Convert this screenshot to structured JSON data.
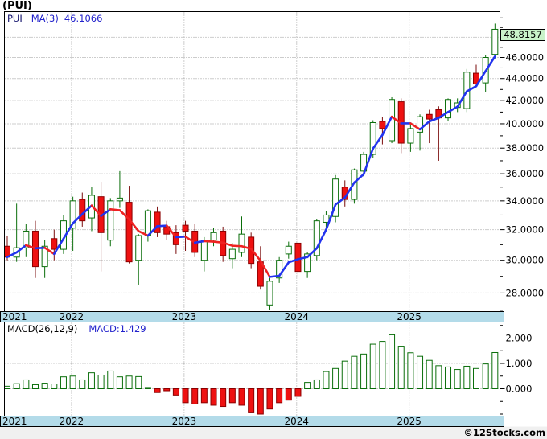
{
  "title": "(PUI)",
  "legend": {
    "symbol": "PUI",
    "ma_label": "MA(3)",
    "ma_value": "46.1066"
  },
  "macd_legend": {
    "label": "MACD(26,12,9)",
    "value": "MACD:1.429"
  },
  "last_price_label": "48.8157",
  "copyright": "©12Stocks.com",
  "price_axis_labels": [
    {
      "text": "46.0000",
      "value": 46
    },
    {
      "text": "44.0000",
      "value": 44
    },
    {
      "text": "42.0000",
      "value": 42
    },
    {
      "text": "40.0000",
      "value": 40
    },
    {
      "text": "38.0000",
      "value": 38
    },
    {
      "text": "36.0000",
      "value": 36
    },
    {
      "text": "34.0000",
      "value": 34
    },
    {
      "text": "32.0000",
      "value": 32
    },
    {
      "text": "30.0000",
      "value": 30
    },
    {
      "text": "28.0000",
      "value": 28
    }
  ],
  "macd_axis_labels": [
    {
      "text": "2.000",
      "value": 2
    },
    {
      "text": "1.000",
      "value": 1
    },
    {
      "text": "0.000",
      "value": 0
    }
  ],
  "x_axis_years": [
    {
      "label": "2021"
    },
    {
      "label": "2022"
    },
    {
      "label": "2023"
    },
    {
      "label": "2024"
    },
    {
      "label": "2025"
    }
  ],
  "colors": {
    "background": "#ffffff",
    "footer_background": "#f0f0f0",
    "axis_strip": "#b3dbe9",
    "grid": "#9a9a9a",
    "border": "#000000",
    "up": "#0a6e0a",
    "down_fill": "#ee1111",
    "down_edge": "#8b0000",
    "ma_up": "#2233ee",
    "ma_down": "#ee2222",
    "last_price_bg": "#c9f3c9",
    "legend_symbol": "#10106a",
    "legend_value": "#2222cc",
    "text": "#000000"
  },
  "chart_data": {
    "type": "candlestick",
    "title": "(PUI)",
    "price_scale": "log",
    "ylim_price": [
      27,
      50.5
    ],
    "ylim_macd": [
      -1.1,
      2.6
    ],
    "x_gridline_years": [
      "2022",
      "2023",
      "2024",
      "2025"
    ],
    "x": [
      "2021-06",
      "2021-07",
      "2021-08",
      "2021-09",
      "2021-10",
      "2021-11",
      "2021-12",
      "2022-01",
      "2022-02",
      "2022-03",
      "2022-04",
      "2022-05",
      "2022-06",
      "2022-07",
      "2022-08",
      "2022-09",
      "2022-10",
      "2022-11",
      "2022-12",
      "2023-01",
      "2023-02",
      "2023-03",
      "2023-04",
      "2023-05",
      "2023-06",
      "2023-07",
      "2023-08",
      "2023-09",
      "2023-10",
      "2023-11",
      "2023-12",
      "2024-01",
      "2024-02",
      "2024-03",
      "2024-04",
      "2024-05",
      "2024-06",
      "2024-07",
      "2024-08",
      "2024-09",
      "2024-10",
      "2024-11",
      "2024-12",
      "2025-01",
      "2025-02",
      "2025-03",
      "2025-04",
      "2025-05",
      "2025-06",
      "2025-07",
      "2025-08",
      "2025-09",
      "2025-10"
    ],
    "ohlc": [
      [
        30.9,
        31.6,
        30.0,
        30.2
      ],
      [
        30.2,
        33.8,
        29.9,
        30.8
      ],
      [
        30.8,
        32.4,
        30.2,
        31.9
      ],
      [
        31.9,
        32.6,
        28.9,
        29.6
      ],
      [
        29.6,
        31.3,
        28.9,
        30.9
      ],
      [
        31.4,
        32.0,
        30.0,
        30.7
      ],
      [
        30.7,
        33.0,
        30.4,
        32.6
      ],
      [
        32.1,
        34.3,
        30.6,
        34.0
      ],
      [
        34.1,
        34.6,
        32.2,
        32.6
      ],
      [
        32.8,
        35.0,
        31.9,
        34.4
      ],
      [
        34.3,
        35.4,
        29.3,
        31.8
      ],
      [
        31.3,
        34.2,
        30.9,
        34.0
      ],
      [
        34.0,
        36.2,
        33.5,
        34.2
      ],
      [
        33.9,
        35.1,
        29.8,
        29.9
      ],
      [
        30.0,
        31.7,
        28.5,
        31.6
      ],
      [
        31.6,
        33.4,
        31.2,
        33.3
      ],
      [
        33.2,
        33.6,
        31.5,
        31.8
      ],
      [
        32.2,
        32.6,
        31.3,
        31.7
      ],
      [
        31.8,
        32.3,
        30.4,
        31.0
      ],
      [
        32.3,
        32.6,
        30.6,
        31.9
      ],
      [
        31.9,
        32.4,
        30.2,
        30.5
      ],
      [
        30.0,
        31.5,
        29.3,
        31.3
      ],
      [
        31.3,
        32.1,
        30.9,
        31.8
      ],
      [
        31.9,
        32.2,
        29.9,
        30.3
      ],
      [
        30.1,
        31.1,
        29.5,
        30.7
      ],
      [
        30.5,
        32.9,
        30.2,
        31.7
      ],
      [
        31.5,
        31.8,
        29.5,
        29.8
      ],
      [
        29.9,
        30.9,
        28.2,
        28.4
      ],
      [
        27.3,
        28.9,
        27.0,
        28.7
      ],
      [
        28.9,
        30.2,
        28.6,
        30.0
      ],
      [
        30.4,
        31.2,
        30.1,
        30.9
      ],
      [
        31.1,
        31.4,
        29.0,
        29.3
      ],
      [
        29.3,
        30.5,
        28.9,
        30.4
      ],
      [
        30.3,
        32.7,
        30.0,
        32.6
      ],
      [
        32.5,
        33.3,
        32.0,
        33.0
      ],
      [
        32.9,
        35.9,
        32.5,
        35.6
      ],
      [
        35.0,
        35.5,
        33.6,
        34.1
      ],
      [
        34.1,
        36.4,
        33.8,
        36.3
      ],
      [
        36.2,
        37.7,
        35.8,
        37.5
      ],
      [
        37.5,
        40.3,
        37.2,
        40.1
      ],
      [
        40.2,
        40.6,
        38.3,
        39.6
      ],
      [
        38.6,
        42.3,
        38.4,
        42.1
      ],
      [
        41.9,
        42.2,
        37.6,
        38.4
      ],
      [
        38.4,
        39.9,
        37.7,
        39.6
      ],
      [
        39.3,
        40.8,
        37.8,
        40.6
      ],
      [
        40.8,
        41.2,
        38.4,
        40.4
      ],
      [
        41.2,
        41.5,
        37.0,
        40.5
      ],
      [
        40.5,
        42.2,
        40.2,
        42.1
      ],
      [
        41.4,
        42.2,
        41.0,
        41.8
      ],
      [
        41.3,
        44.9,
        41.0,
        44.6
      ],
      [
        44.5,
        45.3,
        43.3,
        43.5
      ],
      [
        43.6,
        46.2,
        42.8,
        46.0
      ],
      [
        46.3,
        49.4,
        45.9,
        48.8157
      ]
    ],
    "series": [
      {
        "name": "MA(3)",
        "type": "line",
        "derived": "sma3_of_close",
        "last_value": 46.1066
      }
    ],
    "macd_histogram": [
      0.1,
      0.2,
      0.35,
      0.16,
      0.22,
      0.19,
      0.47,
      0.5,
      0.35,
      0.63,
      0.54,
      0.7,
      0.47,
      0.5,
      0.48,
      0.05,
      -0.15,
      -0.08,
      -0.25,
      -0.55,
      -0.6,
      -0.55,
      -0.65,
      -0.7,
      -0.55,
      -0.65,
      -0.95,
      -1.0,
      -0.8,
      -0.55,
      -0.45,
      -0.3,
      0.25,
      0.35,
      0.68,
      0.8,
      1.09,
      1.28,
      1.37,
      1.76,
      1.87,
      2.13,
      1.68,
      1.42,
      1.28,
      1.12,
      0.91,
      0.86,
      0.76,
      0.89,
      0.8,
      0.98,
      1.429
    ],
    "last_price": 48.8157
  }
}
